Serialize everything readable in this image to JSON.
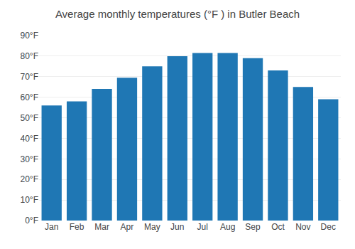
{
  "chart_data": {
    "type": "bar",
    "title": "Average monthly temperatures (°F ) in Butler Beach",
    "categories": [
      "Jan",
      "Feb",
      "Mar",
      "Apr",
      "May",
      "Jun",
      "Jul",
      "Aug",
      "Sep",
      "Oct",
      "Nov",
      "Dec"
    ],
    "values": [
      56,
      58,
      64,
      69.5,
      75,
      80,
      81.5,
      81.5,
      79,
      73,
      65,
      59
    ],
    "ylim": [
      0,
      90
    ],
    "yticks": [
      {
        "value": 0,
        "label": "0°F"
      },
      {
        "value": 10,
        "label": "10°F"
      },
      {
        "value": 20,
        "label": "20°F"
      },
      {
        "value": 30,
        "label": "30°F"
      },
      {
        "value": 40,
        "label": "40°F"
      },
      {
        "value": 50,
        "label": "50°F"
      },
      {
        "value": 60,
        "label": "60°F"
      },
      {
        "value": 70,
        "label": "70°F"
      },
      {
        "value": 80,
        "label": "80°F"
      },
      {
        "value": 90,
        "label": "90°F"
      }
    ],
    "grid": true
  }
}
